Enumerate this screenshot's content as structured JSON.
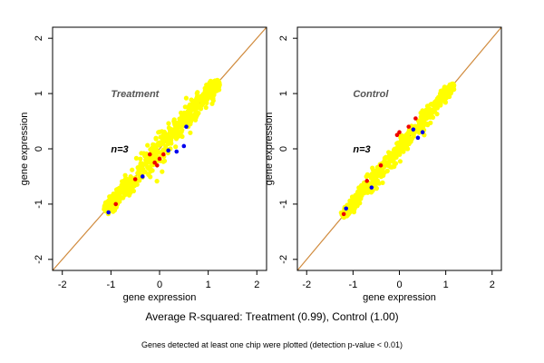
{
  "colors": {
    "background": "#ffffff",
    "frame": "#000000",
    "diagonal": "#d08a3c",
    "main_points": "#ffff00",
    "low_points": "#0000ee",
    "high_points": "#ee0000",
    "panel_title": "#555555"
  },
  "caption": {
    "main": "Average R-squared: Treatment (0.99), Control (1.00)",
    "sub": "Genes detected at least one chip were plotted (detection p-value < 0.01)"
  },
  "chart_data": [
    {
      "type": "scatter",
      "title": "Treatment",
      "annotation": "n=3",
      "xlabel": "gene expression",
      "ylabel": "gene expression",
      "xlim": [
        -2.2,
        2.2
      ],
      "ylim": [
        -2.2,
        2.2
      ],
      "xticks": [
        -2,
        -1,
        0,
        1,
        2
      ],
      "yticks": [
        -2,
        -1,
        0,
        1,
        2
      ],
      "grid": false,
      "reference_line": "y = x",
      "cloud": {
        "x_range": [
          -1.1,
          1.2
        ],
        "spread": 0.1
      },
      "series": [
        {
          "role": "main",
          "color": "yellow"
        },
        {
          "role": "low",
          "color": "blue",
          "points": [
            [
              -1.05,
              -1.15
            ],
            [
              0.18,
              -0.03
            ],
            [
              0.35,
              -0.05
            ],
            [
              0.5,
              0.05
            ],
            [
              0.55,
              0.4
            ],
            [
              -0.35,
              -0.5
            ]
          ]
        },
        {
          "role": "high",
          "color": "red",
          "points": [
            [
              -0.1,
              -0.25
            ],
            [
              -0.05,
              -0.3
            ],
            [
              0.0,
              -0.18
            ],
            [
              -0.2,
              -0.1
            ],
            [
              0.08,
              -0.1
            ],
            [
              -0.5,
              -0.55
            ],
            [
              -0.9,
              -1.0
            ]
          ]
        }
      ]
    },
    {
      "type": "scatter",
      "title": "Control",
      "annotation": "n=3",
      "xlabel": "gene expression",
      "ylabel": "gene expression",
      "xlim": [
        -2.2,
        2.2
      ],
      "ylim": [
        -2.2,
        2.2
      ],
      "xticks": [
        -2,
        -1,
        0,
        1,
        2
      ],
      "yticks": [
        -2,
        -1,
        0,
        1,
        2
      ],
      "grid": false,
      "reference_line": "y = x",
      "cloud": {
        "x_range": [
          -1.2,
          1.15
        ],
        "spread": 0.07
      },
      "series": [
        {
          "role": "main",
          "color": "yellow"
        },
        {
          "role": "low",
          "color": "blue",
          "points": [
            [
              -1.15,
              -1.08
            ],
            [
              0.4,
              0.2
            ],
            [
              0.5,
              0.3
            ],
            [
              -0.6,
              -0.7
            ],
            [
              0.3,
              0.35
            ]
          ]
        },
        {
          "role": "high",
          "color": "red",
          "points": [
            [
              -1.2,
              -1.18
            ],
            [
              0.0,
              0.3
            ],
            [
              -0.05,
              0.25
            ],
            [
              0.35,
              0.55
            ],
            [
              -0.7,
              -0.58
            ],
            [
              0.2,
              0.4
            ],
            [
              -0.4,
              -0.3
            ]
          ]
        }
      ]
    }
  ]
}
